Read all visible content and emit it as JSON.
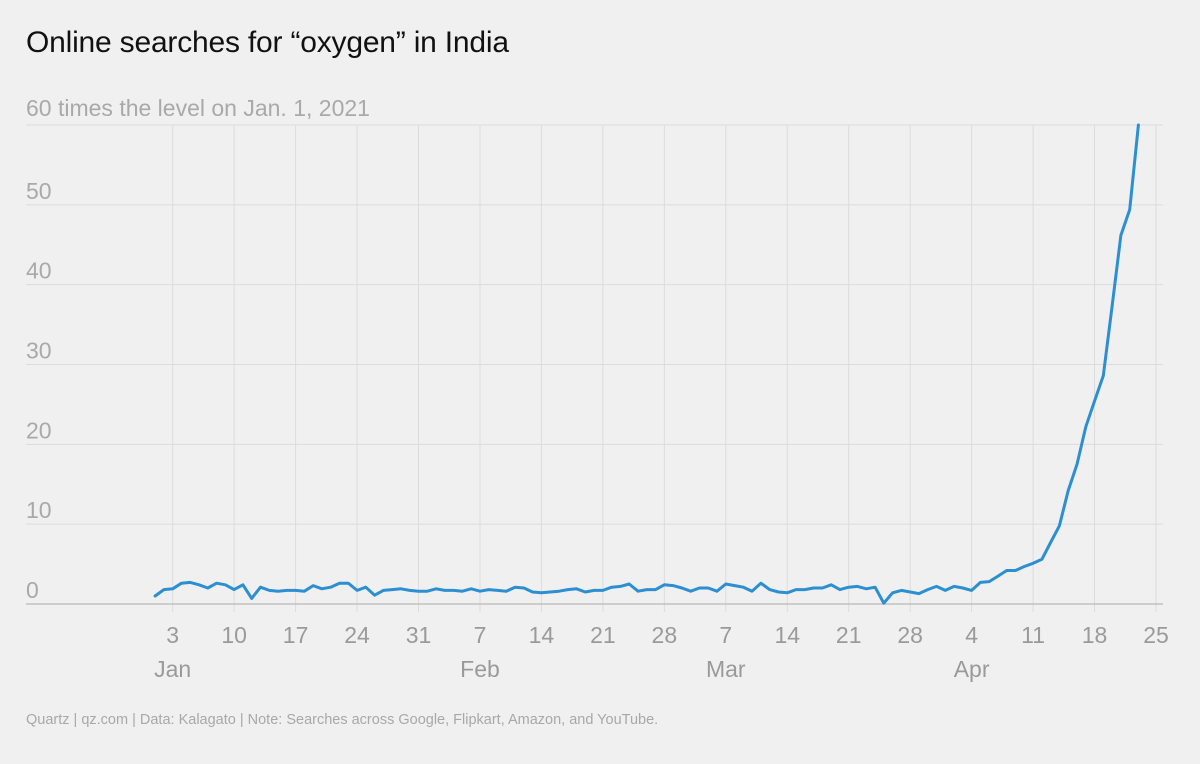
{
  "title": "Online searches for “oxygen” in India",
  "footer": "Quartz | qz.com | Data: Kalagato | Note: Searches across Google, Flipkart, Amazon, and YouTube.",
  "chart_data": {
    "type": "line",
    "title": "Online searches for “oxygen” in India",
    "subtitle": "60 times the level on Jan. 1, 2021",
    "xlabel": "",
    "ylabel": "",
    "x_start": "2021-01-01",
    "x_end": "2021-04-24",
    "xlim": [
      "2020-12-28",
      "2021-04-25"
    ],
    "ylim": [
      0,
      60
    ],
    "y_ticks": [
      0,
      10,
      20,
      30,
      40,
      50
    ],
    "y_top_label": "60 times the level on Jan. 1, 2021",
    "x_ticks": [
      {
        "date": "2021-01-03",
        "label": "3"
      },
      {
        "date": "2021-01-10",
        "label": "10"
      },
      {
        "date": "2021-01-17",
        "label": "17"
      },
      {
        "date": "2021-01-24",
        "label": "24"
      },
      {
        "date": "2021-01-31",
        "label": "31"
      },
      {
        "date": "2021-02-07",
        "label": "7"
      },
      {
        "date": "2021-02-14",
        "label": "14"
      },
      {
        "date": "2021-02-21",
        "label": "21"
      },
      {
        "date": "2021-02-28",
        "label": "28"
      },
      {
        "date": "2021-03-07",
        "label": "7"
      },
      {
        "date": "2021-03-14",
        "label": "14"
      },
      {
        "date": "2021-03-21",
        "label": "21"
      },
      {
        "date": "2021-03-28",
        "label": "28"
      },
      {
        "date": "2021-04-04",
        "label": "4"
      },
      {
        "date": "2021-04-11",
        "label": "11"
      },
      {
        "date": "2021-04-18",
        "label": "18"
      },
      {
        "date": "2021-04-25",
        "label": "25"
      }
    ],
    "month_labels": [
      {
        "date": "2021-01-03",
        "label": "Jan"
      },
      {
        "date": "2021-02-07",
        "label": "Feb"
      },
      {
        "date": "2021-03-07",
        "label": "Mar"
      },
      {
        "date": "2021-04-04",
        "label": "Apr"
      }
    ],
    "grid": true,
    "line_color": "#2b8fd1",
    "series": [
      {
        "values": [
          1.0,
          1.8,
          1.9,
          2.6,
          2.7,
          2.4,
          2.0,
          2.6,
          2.4,
          1.8,
          2.4,
          0.7,
          2.1,
          1.7,
          1.6,
          1.7,
          1.7,
          1.6,
          2.3,
          1.9,
          2.1,
          2.6,
          2.6,
          1.7,
          2.1,
          1.1,
          1.7,
          1.8,
          1.9,
          1.7,
          1.6,
          1.6,
          1.9,
          1.7,
          1.7,
          1.6,
          1.9,
          1.6,
          1.8,
          1.7,
          1.6,
          2.1,
          2.0,
          1.5,
          1.4,
          1.5,
          1.6,
          1.8,
          1.9,
          1.5,
          1.7,
          1.7,
          2.1,
          2.2,
          2.5,
          1.6,
          1.8,
          1.8,
          2.4,
          2.3,
          2.0,
          1.6,
          2.0,
          2.0,
          1.6,
          2.5,
          2.3,
          2.1,
          1.6,
          2.6,
          1.8,
          1.5,
          1.4,
          1.8,
          1.8,
          2.0,
          2.0,
          2.4,
          1.8,
          2.1,
          2.2,
          1.9,
          2.1,
          0.1,
          1.4,
          1.7,
          1.5,
          1.3,
          1.8,
          2.2,
          1.7,
          2.2,
          2.0,
          1.7,
          2.7,
          2.8,
          3.5,
          4.2,
          4.2,
          4.7,
          5.1,
          5.6,
          7.7,
          9.8,
          14.2,
          17.5,
          22.2,
          25.4,
          28.6,
          37.3,
          46.2,
          49.4,
          60.0
        ]
      }
    ]
  }
}
